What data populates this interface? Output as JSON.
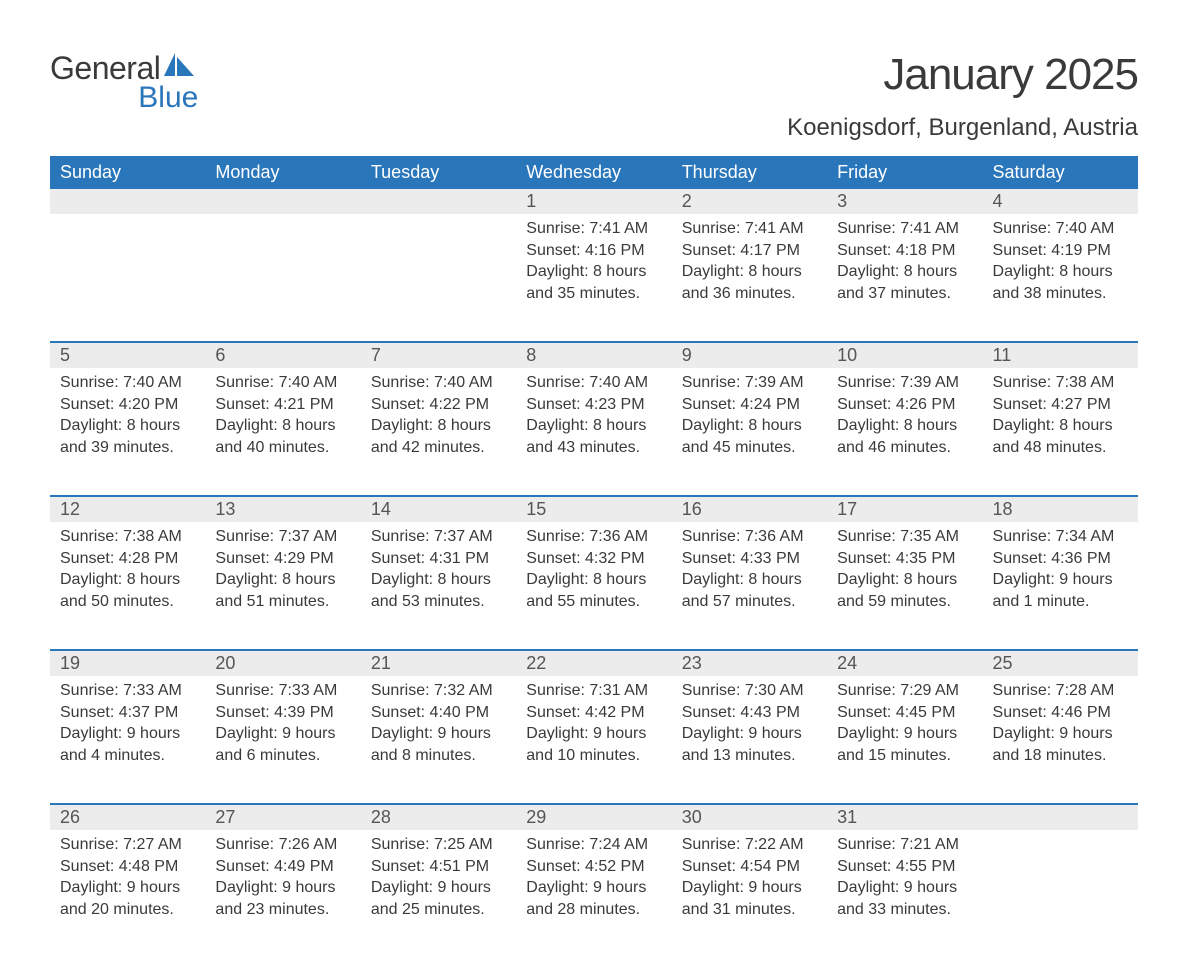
{
  "brand": {
    "general": "General",
    "blue": "Blue"
  },
  "title": "January 2025",
  "location": "Koenigsdorf, Burgenland, Austria",
  "colors": {
    "accent": "#2a76bb",
    "daynum_bg": "#ececec",
    "text": "#3a3a3a",
    "background": "#ffffff"
  },
  "typography": {
    "title_fontsize": 44,
    "location_fontsize": 24,
    "header_fontsize": 18,
    "cell_fontsize": 16
  },
  "weekdays": [
    "Sunday",
    "Monday",
    "Tuesday",
    "Wednesday",
    "Thursday",
    "Friday",
    "Saturday"
  ],
  "weeks": [
    [
      null,
      null,
      null,
      {
        "day": "1",
        "sunrise": "Sunrise: 7:41 AM",
        "sunset": "Sunset: 4:16 PM",
        "dl1": "Daylight: 8 hours",
        "dl2": "and 35 minutes."
      },
      {
        "day": "2",
        "sunrise": "Sunrise: 7:41 AM",
        "sunset": "Sunset: 4:17 PM",
        "dl1": "Daylight: 8 hours",
        "dl2": "and 36 minutes."
      },
      {
        "day": "3",
        "sunrise": "Sunrise: 7:41 AM",
        "sunset": "Sunset: 4:18 PM",
        "dl1": "Daylight: 8 hours",
        "dl2": "and 37 minutes."
      },
      {
        "day": "4",
        "sunrise": "Sunrise: 7:40 AM",
        "sunset": "Sunset: 4:19 PM",
        "dl1": "Daylight: 8 hours",
        "dl2": "and 38 minutes."
      }
    ],
    [
      {
        "day": "5",
        "sunrise": "Sunrise: 7:40 AM",
        "sunset": "Sunset: 4:20 PM",
        "dl1": "Daylight: 8 hours",
        "dl2": "and 39 minutes."
      },
      {
        "day": "6",
        "sunrise": "Sunrise: 7:40 AM",
        "sunset": "Sunset: 4:21 PM",
        "dl1": "Daylight: 8 hours",
        "dl2": "and 40 minutes."
      },
      {
        "day": "7",
        "sunrise": "Sunrise: 7:40 AM",
        "sunset": "Sunset: 4:22 PM",
        "dl1": "Daylight: 8 hours",
        "dl2": "and 42 minutes."
      },
      {
        "day": "8",
        "sunrise": "Sunrise: 7:40 AM",
        "sunset": "Sunset: 4:23 PM",
        "dl1": "Daylight: 8 hours",
        "dl2": "and 43 minutes."
      },
      {
        "day": "9",
        "sunrise": "Sunrise: 7:39 AM",
        "sunset": "Sunset: 4:24 PM",
        "dl1": "Daylight: 8 hours",
        "dl2": "and 45 minutes."
      },
      {
        "day": "10",
        "sunrise": "Sunrise: 7:39 AM",
        "sunset": "Sunset: 4:26 PM",
        "dl1": "Daylight: 8 hours",
        "dl2": "and 46 minutes."
      },
      {
        "day": "11",
        "sunrise": "Sunrise: 7:38 AM",
        "sunset": "Sunset: 4:27 PM",
        "dl1": "Daylight: 8 hours",
        "dl2": "and 48 minutes."
      }
    ],
    [
      {
        "day": "12",
        "sunrise": "Sunrise: 7:38 AM",
        "sunset": "Sunset: 4:28 PM",
        "dl1": "Daylight: 8 hours",
        "dl2": "and 50 minutes."
      },
      {
        "day": "13",
        "sunrise": "Sunrise: 7:37 AM",
        "sunset": "Sunset: 4:29 PM",
        "dl1": "Daylight: 8 hours",
        "dl2": "and 51 minutes."
      },
      {
        "day": "14",
        "sunrise": "Sunrise: 7:37 AM",
        "sunset": "Sunset: 4:31 PM",
        "dl1": "Daylight: 8 hours",
        "dl2": "and 53 minutes."
      },
      {
        "day": "15",
        "sunrise": "Sunrise: 7:36 AM",
        "sunset": "Sunset: 4:32 PM",
        "dl1": "Daylight: 8 hours",
        "dl2": "and 55 minutes."
      },
      {
        "day": "16",
        "sunrise": "Sunrise: 7:36 AM",
        "sunset": "Sunset: 4:33 PM",
        "dl1": "Daylight: 8 hours",
        "dl2": "and 57 minutes."
      },
      {
        "day": "17",
        "sunrise": "Sunrise: 7:35 AM",
        "sunset": "Sunset: 4:35 PM",
        "dl1": "Daylight: 8 hours",
        "dl2": "and 59 minutes."
      },
      {
        "day": "18",
        "sunrise": "Sunrise: 7:34 AM",
        "sunset": "Sunset: 4:36 PM",
        "dl1": "Daylight: 9 hours",
        "dl2": "and 1 minute."
      }
    ],
    [
      {
        "day": "19",
        "sunrise": "Sunrise: 7:33 AM",
        "sunset": "Sunset: 4:37 PM",
        "dl1": "Daylight: 9 hours",
        "dl2": "and 4 minutes."
      },
      {
        "day": "20",
        "sunrise": "Sunrise: 7:33 AM",
        "sunset": "Sunset: 4:39 PM",
        "dl1": "Daylight: 9 hours",
        "dl2": "and 6 minutes."
      },
      {
        "day": "21",
        "sunrise": "Sunrise: 7:32 AM",
        "sunset": "Sunset: 4:40 PM",
        "dl1": "Daylight: 9 hours",
        "dl2": "and 8 minutes."
      },
      {
        "day": "22",
        "sunrise": "Sunrise: 7:31 AM",
        "sunset": "Sunset: 4:42 PM",
        "dl1": "Daylight: 9 hours",
        "dl2": "and 10 minutes."
      },
      {
        "day": "23",
        "sunrise": "Sunrise: 7:30 AM",
        "sunset": "Sunset: 4:43 PM",
        "dl1": "Daylight: 9 hours",
        "dl2": "and 13 minutes."
      },
      {
        "day": "24",
        "sunrise": "Sunrise: 7:29 AM",
        "sunset": "Sunset: 4:45 PM",
        "dl1": "Daylight: 9 hours",
        "dl2": "and 15 minutes."
      },
      {
        "day": "25",
        "sunrise": "Sunrise: 7:28 AM",
        "sunset": "Sunset: 4:46 PM",
        "dl1": "Daylight: 9 hours",
        "dl2": "and 18 minutes."
      }
    ],
    [
      {
        "day": "26",
        "sunrise": "Sunrise: 7:27 AM",
        "sunset": "Sunset: 4:48 PM",
        "dl1": "Daylight: 9 hours",
        "dl2": "and 20 minutes."
      },
      {
        "day": "27",
        "sunrise": "Sunrise: 7:26 AM",
        "sunset": "Sunset: 4:49 PM",
        "dl1": "Daylight: 9 hours",
        "dl2": "and 23 minutes."
      },
      {
        "day": "28",
        "sunrise": "Sunrise: 7:25 AM",
        "sunset": "Sunset: 4:51 PM",
        "dl1": "Daylight: 9 hours",
        "dl2": "and 25 minutes."
      },
      {
        "day": "29",
        "sunrise": "Sunrise: 7:24 AM",
        "sunset": "Sunset: 4:52 PM",
        "dl1": "Daylight: 9 hours",
        "dl2": "and 28 minutes."
      },
      {
        "day": "30",
        "sunrise": "Sunrise: 7:22 AM",
        "sunset": "Sunset: 4:54 PM",
        "dl1": "Daylight: 9 hours",
        "dl2": "and 31 minutes."
      },
      {
        "day": "31",
        "sunrise": "Sunrise: 7:21 AM",
        "sunset": "Sunset: 4:55 PM",
        "dl1": "Daylight: 9 hours",
        "dl2": "and 33 minutes."
      },
      null
    ]
  ]
}
